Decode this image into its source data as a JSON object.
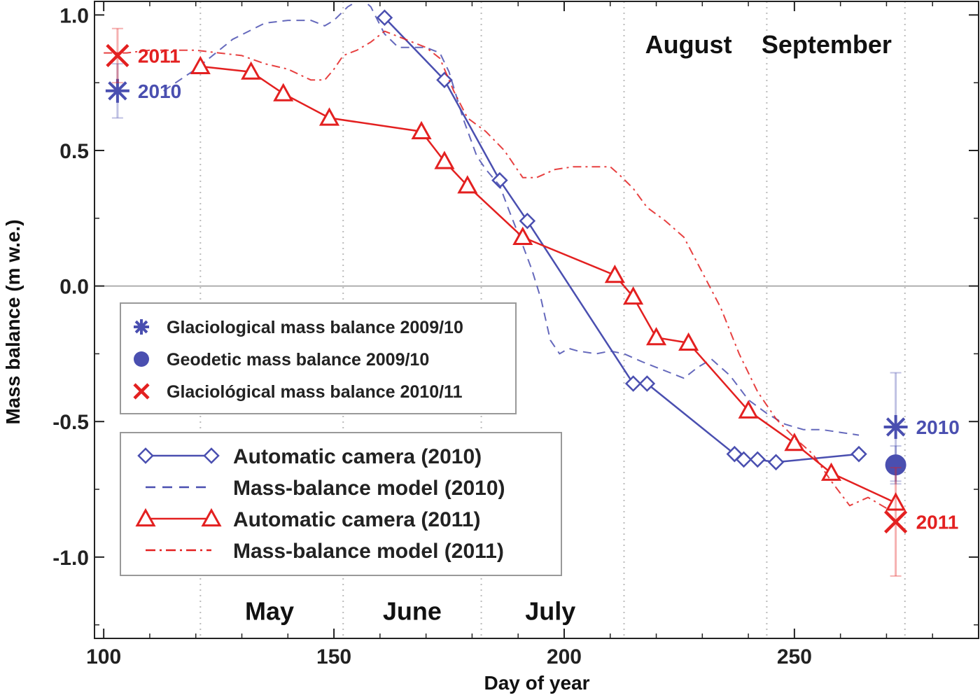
{
  "chart_data": {
    "type": "line",
    "xlabel": "Day of year",
    "ylabel": "Mass balance (m w.e.)",
    "xlim": [
      98,
      290
    ],
    "ylim": [
      -1.3,
      1.05
    ],
    "xticks": [
      100,
      150,
      200,
      250
    ],
    "xtick_labels": [
      "100",
      "150",
      "200",
      "250"
    ],
    "yticks": [
      1.0,
      0.5,
      0.0,
      -0.5,
      -1.0
    ],
    "ytick_labels": [
      "1.0",
      "0.5",
      "0.0",
      "-0.5",
      "-1.0"
    ],
    "month_boundaries": [
      121,
      152,
      182,
      213,
      244,
      274
    ],
    "months": [
      {
        "label": "May",
        "x": 136,
        "y": -1.2
      },
      {
        "label": "June",
        "x": 167,
        "y": -1.2
      },
      {
        "label": "July",
        "x": 197,
        "y": -1.2
      },
      {
        "label": "August",
        "x": 227,
        "y": 0.89
      },
      {
        "label": "September",
        "x": 257,
        "y": 0.89
      }
    ],
    "colors": {
      "y2010": "#4a4fb0",
      "y2011": "#e32020",
      "axis": "#222222",
      "grid": "#bbbbbb"
    },
    "series": [
      {
        "name": "Automatic camera (2010)",
        "style": "solid-diamond",
        "x": [
          161,
          174,
          186,
          192,
          215,
          218,
          237,
          239,
          242,
          246,
          264
        ],
        "y": [
          0.99,
          0.76,
          0.39,
          0.24,
          -0.36,
          -0.36,
          -0.62,
          -0.64,
          -0.64,
          -0.65,
          -0.62
        ]
      },
      {
        "name": "Mass-balance model (2010)",
        "style": "dashed",
        "x": [
          113,
          120,
          128,
          135,
          140,
          145,
          148,
          150,
          153,
          156,
          158,
          161,
          164,
          170,
          173,
          175,
          178,
          181,
          183,
          186,
          188,
          191,
          193,
          195,
          197,
          199,
          201,
          203,
          207,
          210,
          213,
          217,
          220,
          223,
          226,
          229,
          232,
          236,
          240,
          244,
          248,
          252,
          256,
          260,
          264
        ],
        "y": [
          0.72,
          0.8,
          0.91,
          0.97,
          0.98,
          0.98,
          0.96,
          0.98,
          1.03,
          1.06,
          1.03,
          0.93,
          0.88,
          0.88,
          0.86,
          0.79,
          0.62,
          0.48,
          0.43,
          0.37,
          0.28,
          0.15,
          0.06,
          -0.05,
          -0.2,
          -0.25,
          -0.23,
          -0.24,
          -0.25,
          -0.24,
          -0.25,
          -0.28,
          -0.3,
          -0.32,
          -0.34,
          -0.3,
          -0.27,
          -0.33,
          -0.42,
          -0.47,
          -0.51,
          -0.53,
          -0.53,
          -0.54,
          -0.55
        ]
      },
      {
        "name": "Automatic camera (2011)",
        "style": "solid-triangle",
        "x": [
          121,
          132,
          139,
          149,
          169,
          174,
          179,
          191,
          211,
          215,
          220,
          227,
          240,
          250,
          258,
          272
        ],
        "y": [
          0.81,
          0.79,
          0.71,
          0.62,
          0.57,
          0.46,
          0.37,
          0.18,
          0.04,
          -0.04,
          -0.19,
          -0.21,
          -0.46,
          -0.58,
          -0.69,
          -0.8
        ]
      },
      {
        "name": "Mass-balance model (2011)",
        "style": "dashdot",
        "x": [
          100,
          105,
          110,
          115,
          120,
          125,
          130,
          135,
          140,
          145,
          148,
          150,
          152,
          155,
          158,
          161,
          164,
          167,
          170,
          173,
          176,
          179,
          183,
          187,
          191,
          194,
          198,
          202,
          206,
          210,
          212,
          215,
          218,
          222,
          226,
          230,
          234,
          238,
          242,
          246,
          250,
          254,
          258,
          262,
          266,
          270
        ],
        "y": [
          0.86,
          0.86,
          0.87,
          0.87,
          0.87,
          0.86,
          0.85,
          0.82,
          0.8,
          0.76,
          0.76,
          0.8,
          0.85,
          0.87,
          0.9,
          0.94,
          0.92,
          0.9,
          0.88,
          0.84,
          0.72,
          0.62,
          0.57,
          0.5,
          0.4,
          0.4,
          0.43,
          0.44,
          0.44,
          0.44,
          0.41,
          0.36,
          0.29,
          0.24,
          0.18,
          0.05,
          -0.08,
          -0.25,
          -0.39,
          -0.49,
          -0.56,
          -0.62,
          -0.72,
          -0.81,
          -0.78,
          -0.82
        ]
      }
    ],
    "points": [
      {
        "name": "Glaciological mass balance 2009/10",
        "year_label": "2010",
        "marker": "asterisk",
        "color": "#4a4fb0",
        "instances": [
          {
            "x": 103,
            "y": 0.72,
            "err": 0.1,
            "label_side": "right"
          },
          {
            "x": 272,
            "y": -0.52,
            "err": 0.2,
            "label_side": "right"
          }
        ]
      },
      {
        "name": "Geodetic mass balance 2009/10",
        "marker": "dot",
        "color": "#4a4fb0",
        "instances": [
          {
            "x": 272,
            "y": -0.66,
            "err": 0.07
          }
        ]
      },
      {
        "name": "Glaciological mass balance 2010/11",
        "year_label": "2011",
        "marker": "cross",
        "color": "#e32020",
        "instances": [
          {
            "x": 103,
            "y": 0.85,
            "err": 0.1,
            "label_side": "right"
          },
          {
            "x": 272,
            "y": -0.87,
            "err": 0.2,
            "label_side": "right"
          }
        ]
      }
    ]
  },
  "legend_points": [
    {
      "label": "Glaciological mass balance 2009/10",
      "marker": "asterisk",
      "color": "#4a4fb0"
    },
    {
      "label": "Geodetic mass balance 2009/10",
      "marker": "dot",
      "color": "#4a4fb0"
    },
    {
      "label": "Glaciológical mass balance 2010/11",
      "marker": "cross",
      "color": "#e32020"
    }
  ],
  "legend_lines": [
    {
      "label": "Automatic camera (2010)",
      "style": "solid-diamond",
      "color": "#4a4fb0"
    },
    {
      "label": "Mass-balance model (2010)",
      "style": "dashed",
      "color": "#4a4fb0"
    },
    {
      "label": "Automatic camera (2011)",
      "style": "solid-triangle",
      "color": "#e32020"
    },
    {
      "label": "Mass-balance model (2011)",
      "style": "dashdot",
      "color": "#e32020"
    }
  ]
}
